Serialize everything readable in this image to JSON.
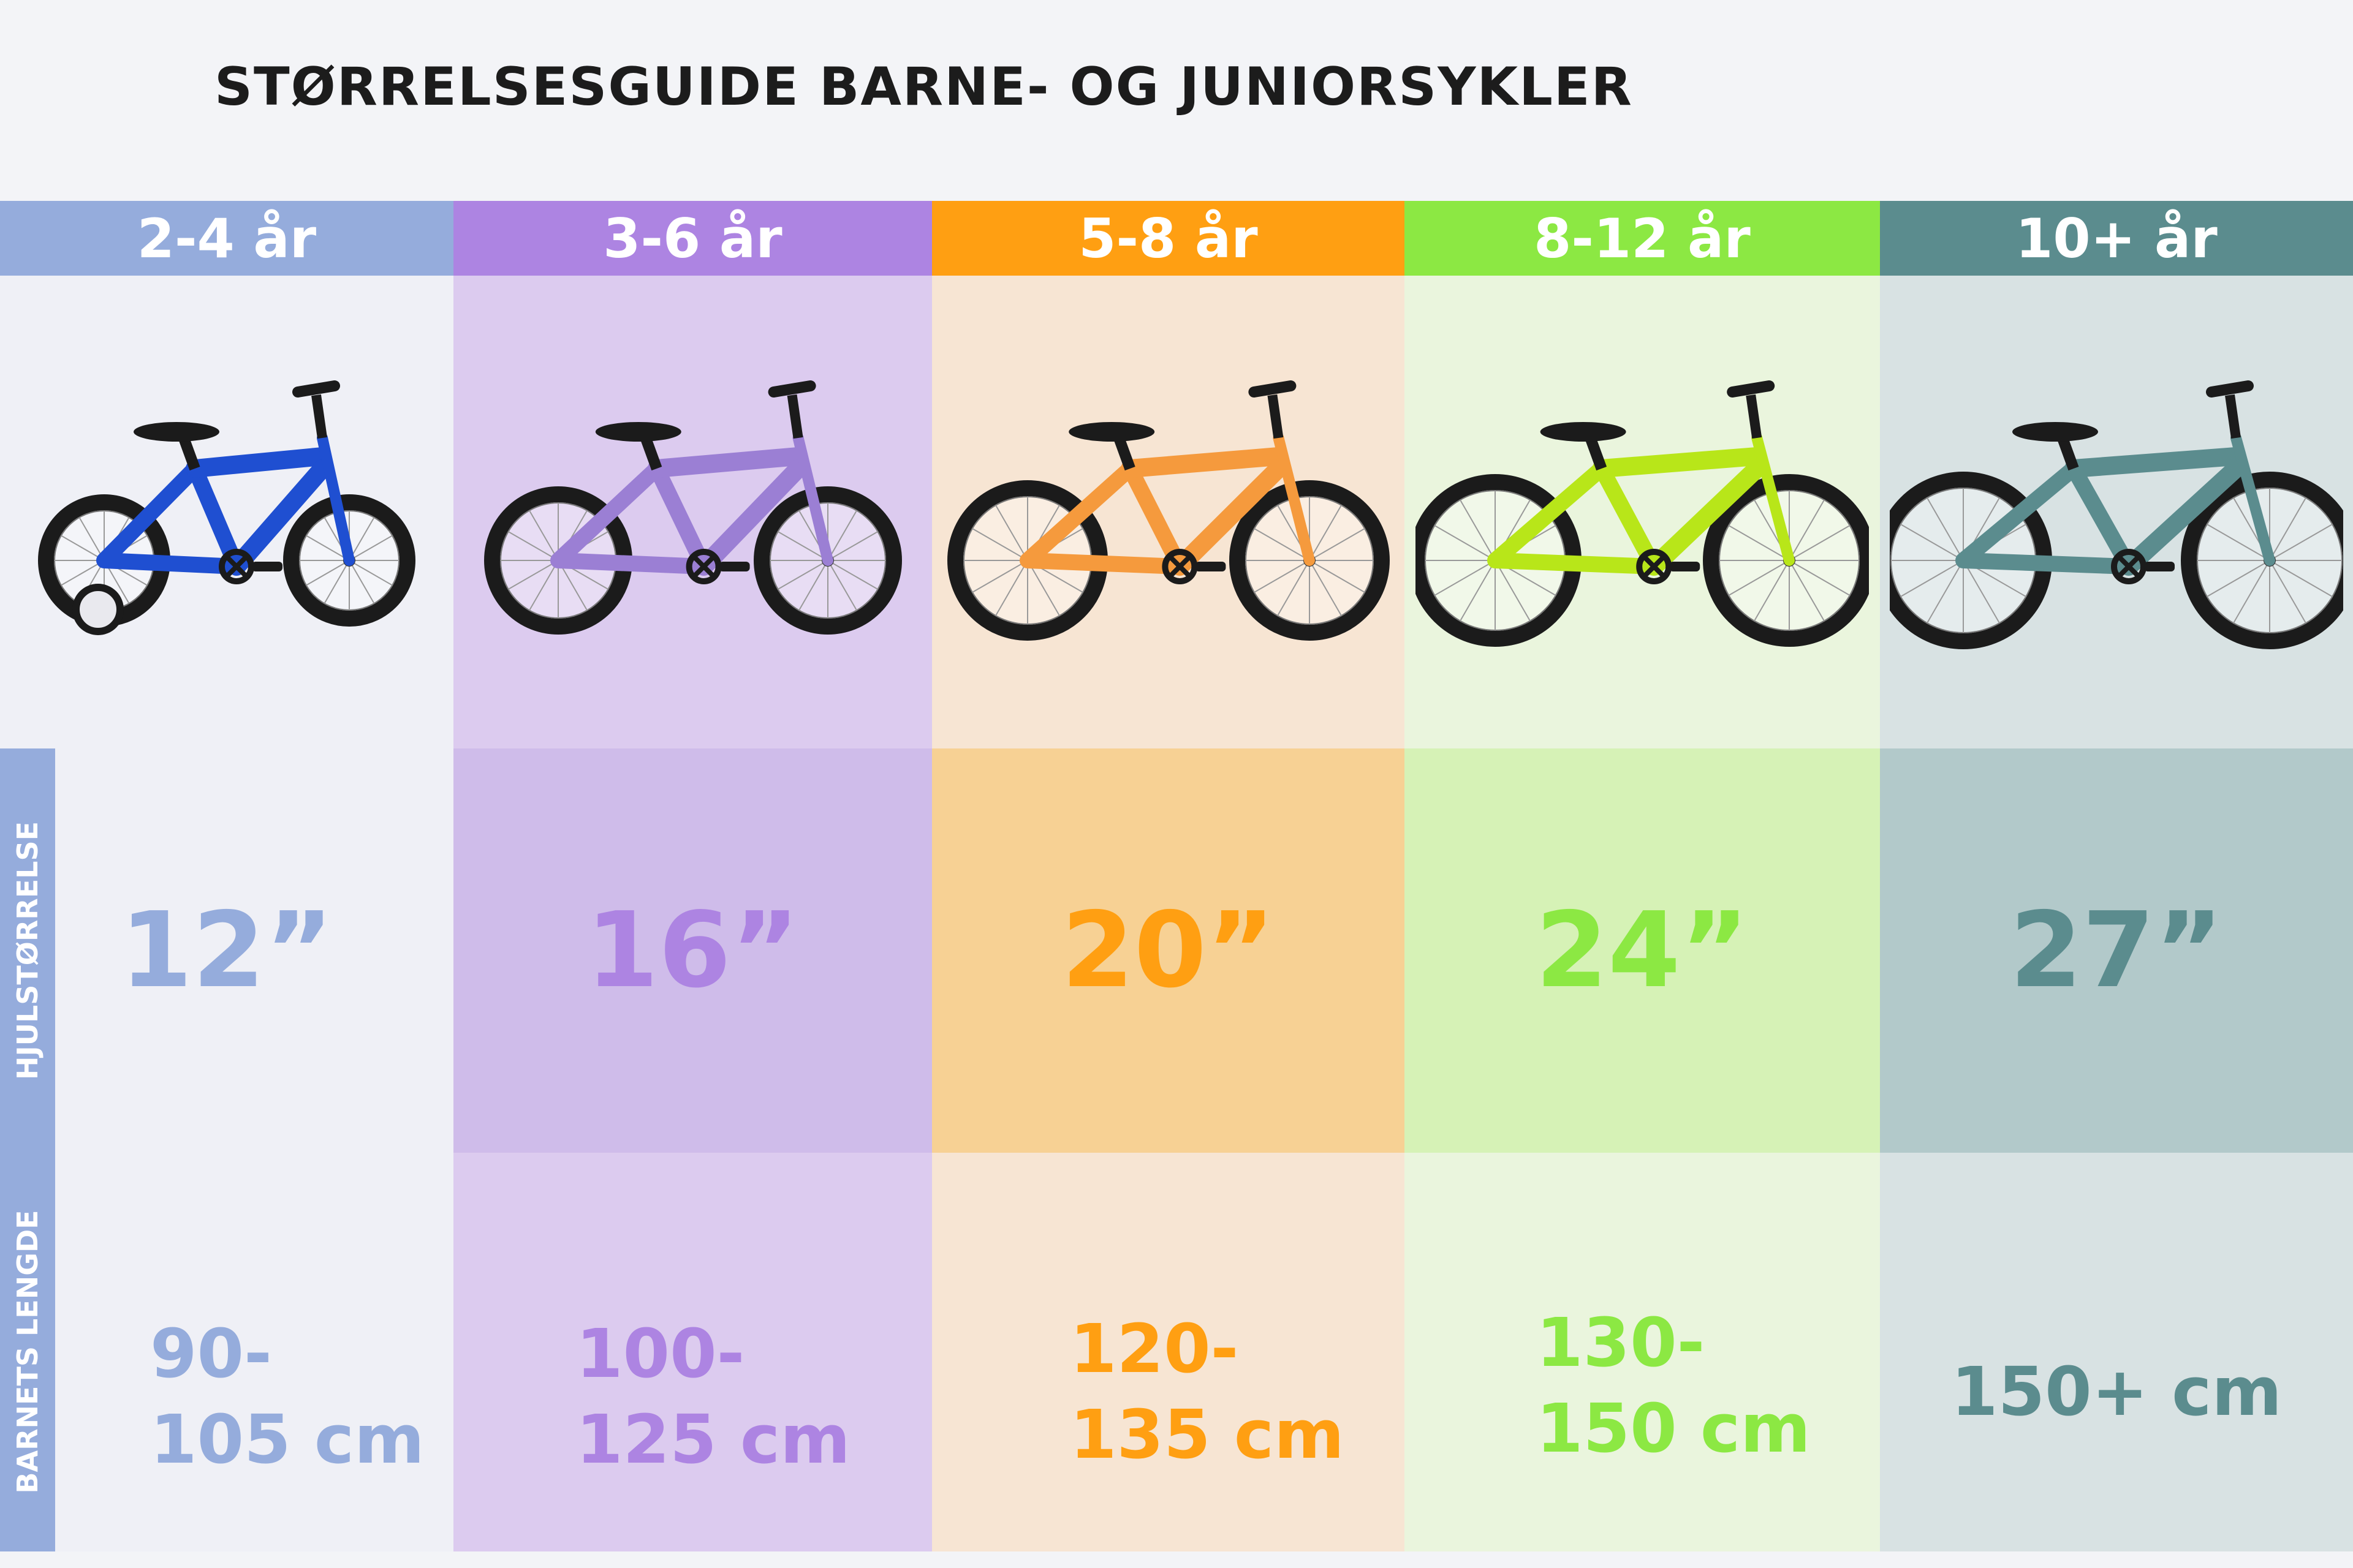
{
  "title": "STØRRELSESGUIDE BARNE- OG JUNIORSYKLER",
  "row_labels": {
    "wheel_size": "HJULSTØRRELSE",
    "child_height": "BARNETS LENGDE"
  },
  "columns": [
    {
      "age": "2-4 år",
      "wheel": "12”",
      "height_line1": "90-",
      "height_line2": "105 cm",
      "header_color": "#95acdc",
      "text_color": "#95acdc",
      "bike_bg": "#eff0f6",
      "wheel_bg": "#eff0f6",
      "height_bg": "#eff0f6",
      "bike_frame_color": "#1f4fd1",
      "training_wheels": "yes"
    },
    {
      "age": "3-6 år",
      "wheel": "16”",
      "height_line1": "100-",
      "height_line2": "125 cm",
      "header_color": "#ad84e2",
      "text_color": "#ad84e2",
      "bike_bg": "#dccbef",
      "wheel_bg": "#cfbcea",
      "height_bg": "#dccbef",
      "bike_frame_color": "#9b7fd4",
      "training_wheels": "no"
    },
    {
      "age": "5-8 år",
      "wheel": "20”",
      "height_line1": "120-",
      "height_line2": "135 cm",
      "header_color": "#ff9f12",
      "text_color": "#ff9f12",
      "bike_bg": "#f7e5d3",
      "wheel_bg": "#f7d194",
      "height_bg": "#f7e5d3",
      "bike_frame_color": "#f59a3d",
      "training_wheels": "no"
    },
    {
      "age": "8-12 år",
      "wheel": "24”",
      "height_line1": "130-",
      "height_line2": "150 cm",
      "header_color": "#8ce843",
      "text_color": "#8ce843",
      "bike_bg": "#eaf5dd",
      "wheel_bg": "#d6f2b6",
      "height_bg": "#eaf5dd",
      "bike_frame_color": "#b8e619",
      "training_wheels": "no"
    },
    {
      "age": "10+ år",
      "wheel": "27”",
      "height_line1": "150+ cm",
      "height_line2": "",
      "header_color": "#5b8c8e",
      "text_color": "#5b8c8e",
      "bike_bg": "#d8e2e3",
      "wheel_bg": "#b2c9ca",
      "height_bg": "#d8e2e3",
      "bike_frame_color": "#5b8c8e",
      "training_wheels": "no"
    }
  ]
}
